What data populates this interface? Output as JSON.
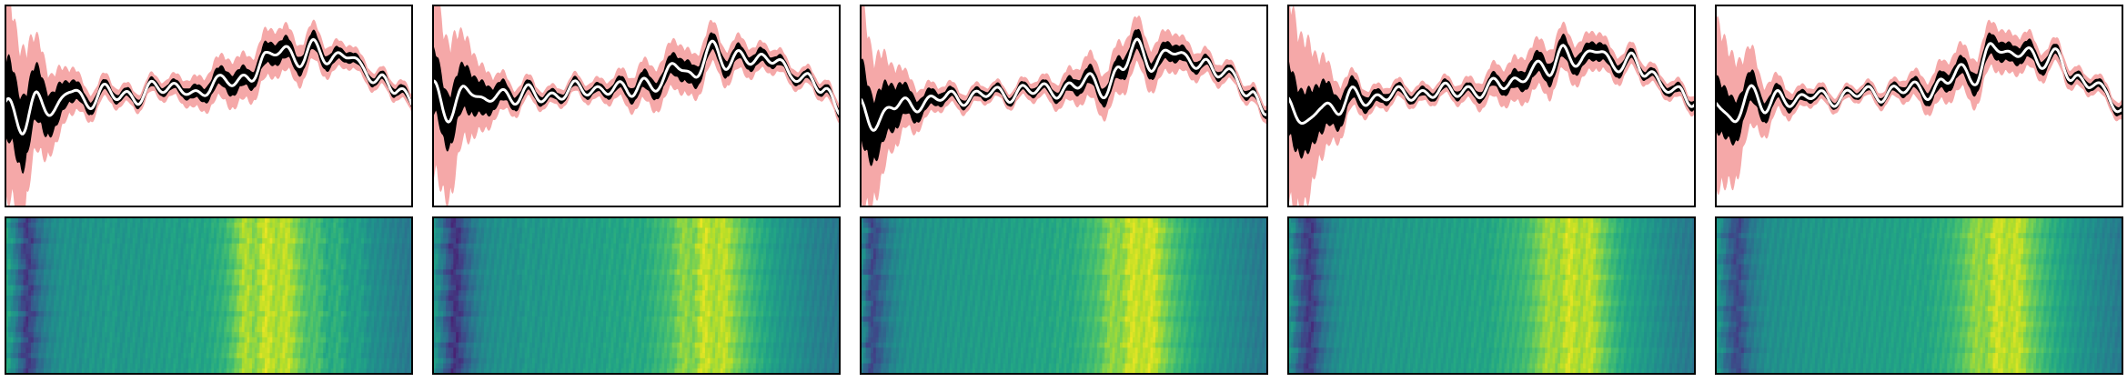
{
  "chart_data": [
    {
      "type": "line",
      "panel": 1,
      "xlabel": "",
      "ylabel": "",
      "xlim": [
        0,
        1
      ],
      "ylim": [
        -1.2,
        1.2
      ],
      "bands": [
        "spread",
        "core"
      ],
      "grid": false,
      "band_colors": {
        "spread": "#f4a3a3",
        "core": "#000000",
        "mean": "#ffffff"
      },
      "x": [
        0,
        0.04,
        0.08,
        0.12,
        0.16,
        0.2,
        0.24,
        0.28,
        0.32,
        0.36,
        0.4,
        0.44,
        0.48,
        0.52,
        0.56,
        0.6,
        0.64,
        0.68,
        0.72,
        0.76,
        0.8,
        0.84,
        0.88,
        0.92,
        0.96,
        1.0
      ],
      "mean": [
        0.05,
        -0.3,
        0.15,
        -0.1,
        0.2,
        0.05,
        0.18,
        0.1,
        0.12,
        0.22,
        0.18,
        0.25,
        0.1,
        0.28,
        0.35,
        0.3,
        0.55,
        0.75,
        0.5,
        0.7,
        0.58,
        0.62,
        0.4,
        0.35,
        0.2,
        0.0
      ],
      "core": [
        0.45,
        0.4,
        0.3,
        0.22,
        0.12,
        0.08,
        0.06,
        0.05,
        0.05,
        0.05,
        0.05,
        0.06,
        0.08,
        0.1,
        0.12,
        0.1,
        0.12,
        0.12,
        0.1,
        0.1,
        0.08,
        0.06,
        0.05,
        0.05,
        0.05,
        0.05
      ],
      "spread": [
        1.1,
        0.9,
        0.6,
        0.4,
        0.25,
        0.16,
        0.13,
        0.11,
        0.1,
        0.1,
        0.11,
        0.14,
        0.18,
        0.22,
        0.26,
        0.24,
        0.26,
        0.25,
        0.22,
        0.2,
        0.16,
        0.13,
        0.11,
        0.1,
        0.1,
        0.1
      ]
    },
    {
      "type": "line",
      "panel": 2,
      "xlabel": "",
      "ylabel": "",
      "xlim": [
        0,
        1
      ],
      "ylim": [
        -1.2,
        1.2
      ],
      "bands": [
        "spread",
        "core"
      ],
      "grid": false,
      "x": [
        0,
        0.04,
        0.08,
        0.12,
        0.16,
        0.2,
        0.24,
        0.28,
        0.32,
        0.36,
        0.4,
        0.44,
        0.48,
        0.52,
        0.56,
        0.6,
        0.64,
        0.68,
        0.72,
        0.76,
        0.8,
        0.84,
        0.88,
        0.92,
        0.96,
        1.0
      ],
      "mean": [
        0.2,
        -0.1,
        0.25,
        0.0,
        0.2,
        0.08,
        0.15,
        0.12,
        0.15,
        0.2,
        0.2,
        0.22,
        0.15,
        0.3,
        0.25,
        0.5,
        0.35,
        0.7,
        0.48,
        0.65,
        0.52,
        0.55,
        0.42,
        0.3,
        0.18,
        0.0
      ],
      "core": [
        0.35,
        0.3,
        0.25,
        0.18,
        0.12,
        0.08,
        0.06,
        0.05,
        0.05,
        0.05,
        0.05,
        0.06,
        0.08,
        0.1,
        0.1,
        0.12,
        0.12,
        0.1,
        0.1,
        0.08,
        0.08,
        0.06,
        0.05,
        0.05,
        0.05,
        0.05
      ],
      "spread": [
        1.0,
        0.85,
        0.55,
        0.35,
        0.22,
        0.15,
        0.12,
        0.1,
        0.1,
        0.1,
        0.11,
        0.13,
        0.18,
        0.22,
        0.24,
        0.26,
        0.24,
        0.23,
        0.2,
        0.18,
        0.15,
        0.13,
        0.11,
        0.1,
        0.1,
        0.1
      ]
    },
    {
      "type": "line",
      "panel": 3,
      "xlabel": "",
      "ylabel": "",
      "xlim": [
        0,
        1
      ],
      "ylim": [
        -1.2,
        1.2
      ],
      "bands": [
        "spread",
        "core"
      ],
      "grid": false,
      "x": [
        0,
        0.04,
        0.08,
        0.12,
        0.16,
        0.2,
        0.24,
        0.28,
        0.32,
        0.36,
        0.4,
        0.44,
        0.48,
        0.52,
        0.56,
        0.6,
        0.64,
        0.68,
        0.72,
        0.76,
        0.8,
        0.84,
        0.88,
        0.92,
        0.96,
        1.0
      ],
      "mean": [
        0.05,
        -0.25,
        0.0,
        0.05,
        0.02,
        0.1,
        0.12,
        0.1,
        0.15,
        0.15,
        0.18,
        0.18,
        0.2,
        0.22,
        0.3,
        0.2,
        0.45,
        0.7,
        0.5,
        0.68,
        0.52,
        0.55,
        0.4,
        0.32,
        0.15,
        -0.05
      ],
      "core": [
        0.45,
        0.35,
        0.25,
        0.15,
        0.1,
        0.07,
        0.05,
        0.05,
        0.05,
        0.05,
        0.05,
        0.05,
        0.06,
        0.08,
        0.1,
        0.1,
        0.12,
        0.12,
        0.1,
        0.1,
        0.08,
        0.06,
        0.05,
        0.05,
        0.05,
        0.05
      ],
      "spread": [
        1.1,
        0.75,
        0.45,
        0.28,
        0.18,
        0.13,
        0.11,
        0.1,
        0.09,
        0.09,
        0.1,
        0.11,
        0.14,
        0.18,
        0.24,
        0.24,
        0.28,
        0.26,
        0.24,
        0.22,
        0.18,
        0.14,
        0.12,
        0.1,
        0.1,
        0.1
      ]
    },
    {
      "type": "line",
      "panel": 4,
      "xlabel": "",
      "ylabel": "",
      "xlim": [
        0,
        1
      ],
      "ylim": [
        -1.2,
        1.2
      ],
      "bands": [
        "spread",
        "core"
      ],
      "grid": false,
      "x": [
        0,
        0.04,
        0.08,
        0.12,
        0.16,
        0.2,
        0.24,
        0.28,
        0.32,
        0.36,
        0.4,
        0.44,
        0.48,
        0.52,
        0.56,
        0.6,
        0.64,
        0.68,
        0.72,
        0.76,
        0.8,
        0.84,
        0.88,
        0.92,
        0.96,
        1.0
      ],
      "mean": [
        0.1,
        -0.3,
        0.05,
        -0.05,
        0.12,
        0.08,
        0.14,
        0.12,
        0.15,
        0.18,
        0.16,
        0.2,
        0.18,
        0.25,
        0.3,
        0.45,
        0.4,
        0.7,
        0.5,
        0.68,
        0.5,
        0.55,
        0.38,
        0.3,
        0.15,
        0.0
      ],
      "core": [
        0.4,
        0.35,
        0.28,
        0.18,
        0.12,
        0.08,
        0.06,
        0.05,
        0.05,
        0.05,
        0.05,
        0.05,
        0.06,
        0.08,
        0.1,
        0.12,
        0.12,
        0.12,
        0.1,
        0.1,
        0.08,
        0.06,
        0.05,
        0.05,
        0.05,
        0.05
      ],
      "spread": [
        1.1,
        0.9,
        0.55,
        0.32,
        0.2,
        0.14,
        0.12,
        0.1,
        0.1,
        0.1,
        0.1,
        0.12,
        0.15,
        0.2,
        0.24,
        0.26,
        0.26,
        0.24,
        0.22,
        0.2,
        0.16,
        0.13,
        0.11,
        0.1,
        0.1,
        0.1
      ]
    },
    {
      "type": "line",
      "panel": 5,
      "xlabel": "",
      "ylabel": "",
      "xlim": [
        0,
        1
      ],
      "ylim": [
        -1.2,
        1.2
      ],
      "bands": [
        "spread",
        "core"
      ],
      "grid": false,
      "x": [
        0,
        0.04,
        0.08,
        0.12,
        0.16,
        0.2,
        0.24,
        0.28,
        0.32,
        0.36,
        0.4,
        0.44,
        0.48,
        0.52,
        0.56,
        0.6,
        0.64,
        0.68,
        0.72,
        0.76,
        0.8,
        0.84,
        0.88,
        0.92,
        0.96,
        1.0
      ],
      "mean": [
        0.05,
        -0.2,
        0.2,
        -0.05,
        0.15,
        0.05,
        0.12,
        0.1,
        0.12,
        0.15,
        0.15,
        0.18,
        0.2,
        0.18,
        0.28,
        0.4,
        0.35,
        0.75,
        0.55,
        0.72,
        0.5,
        0.58,
        0.35,
        0.28,
        0.12,
        -0.05
      ],
      "core": [
        0.3,
        0.25,
        0.18,
        0.12,
        0.08,
        0.06,
        0.05,
        0.04,
        0.04,
        0.04,
        0.04,
        0.05,
        0.06,
        0.08,
        0.1,
        0.1,
        0.12,
        0.12,
        0.1,
        0.1,
        0.08,
        0.06,
        0.05,
        0.05,
        0.05,
        0.05
      ],
      "spread": [
        0.9,
        0.7,
        0.45,
        0.28,
        0.18,
        0.12,
        0.1,
        0.09,
        0.08,
        0.08,
        0.09,
        0.1,
        0.14,
        0.18,
        0.22,
        0.24,
        0.26,
        0.25,
        0.22,
        0.2,
        0.16,
        0.13,
        0.11,
        0.1,
        0.1,
        0.1
      ]
    },
    {
      "type": "heatmap",
      "panel": 1,
      "colormap": "viridis",
      "column_values": [
        0.6,
        0.4,
        0.15,
        0.35,
        0.45,
        0.5,
        0.52,
        0.5,
        0.54,
        0.52,
        0.56,
        0.52,
        0.55,
        0.53,
        0.56,
        0.55,
        0.58,
        0.55,
        0.6,
        0.58,
        0.62,
        0.65,
        0.75,
        0.9,
        0.8,
        0.95,
        0.85,
        0.92,
        0.8,
        0.7,
        0.72,
        0.6,
        0.65,
        0.55,
        0.58,
        0.5,
        0.48,
        0.45,
        0.42,
        0.4
      ]
    },
    {
      "type": "heatmap",
      "panel": 2,
      "colormap": "viridis",
      "column_values": [
        0.55,
        0.35,
        0.12,
        0.3,
        0.42,
        0.48,
        0.5,
        0.52,
        0.5,
        0.55,
        0.52,
        0.55,
        0.54,
        0.56,
        0.55,
        0.58,
        0.56,
        0.6,
        0.58,
        0.62,
        0.6,
        0.64,
        0.68,
        0.72,
        0.85,
        0.78,
        0.95,
        0.85,
        0.92,
        0.8,
        0.72,
        0.65,
        0.6,
        0.55,
        0.52,
        0.5,
        0.46,
        0.44,
        0.42,
        0.4
      ]
    },
    {
      "type": "heatmap",
      "panel": 3,
      "colormap": "viridis",
      "column_values": [
        0.5,
        0.2,
        0.35,
        0.45,
        0.5,
        0.52,
        0.52,
        0.54,
        0.53,
        0.55,
        0.54,
        0.56,
        0.55,
        0.57,
        0.56,
        0.58,
        0.57,
        0.6,
        0.58,
        0.62,
        0.6,
        0.64,
        0.68,
        0.72,
        0.85,
        0.8,
        0.95,
        0.88,
        0.95,
        0.82,
        0.72,
        0.65,
        0.6,
        0.55,
        0.52,
        0.5,
        0.48,
        0.45,
        0.42,
        0.4
      ]
    },
    {
      "type": "heatmap",
      "panel": 4,
      "colormap": "viridis",
      "column_values": [
        0.55,
        0.3,
        0.15,
        0.35,
        0.45,
        0.5,
        0.52,
        0.52,
        0.54,
        0.53,
        0.55,
        0.54,
        0.56,
        0.55,
        0.57,
        0.56,
        0.58,
        0.57,
        0.6,
        0.58,
        0.62,
        0.64,
        0.66,
        0.7,
        0.78,
        0.88,
        0.82,
        0.95,
        0.85,
        0.92,
        0.8,
        0.7,
        0.62,
        0.58,
        0.55,
        0.52,
        0.48,
        0.45,
        0.42,
        0.4
      ]
    },
    {
      "type": "heatmap",
      "panel": 5,
      "colormap": "viridis",
      "column_values": [
        0.55,
        0.35,
        0.2,
        0.38,
        0.45,
        0.5,
        0.5,
        0.52,
        0.52,
        0.54,
        0.53,
        0.55,
        0.54,
        0.56,
        0.55,
        0.57,
        0.56,
        0.58,
        0.57,
        0.6,
        0.58,
        0.62,
        0.64,
        0.68,
        0.75,
        0.85,
        0.8,
        0.95,
        0.86,
        0.93,
        0.8,
        0.72,
        0.65,
        0.6,
        0.56,
        0.52,
        0.5,
        0.46,
        0.44,
        0.4
      ]
    }
  ]
}
